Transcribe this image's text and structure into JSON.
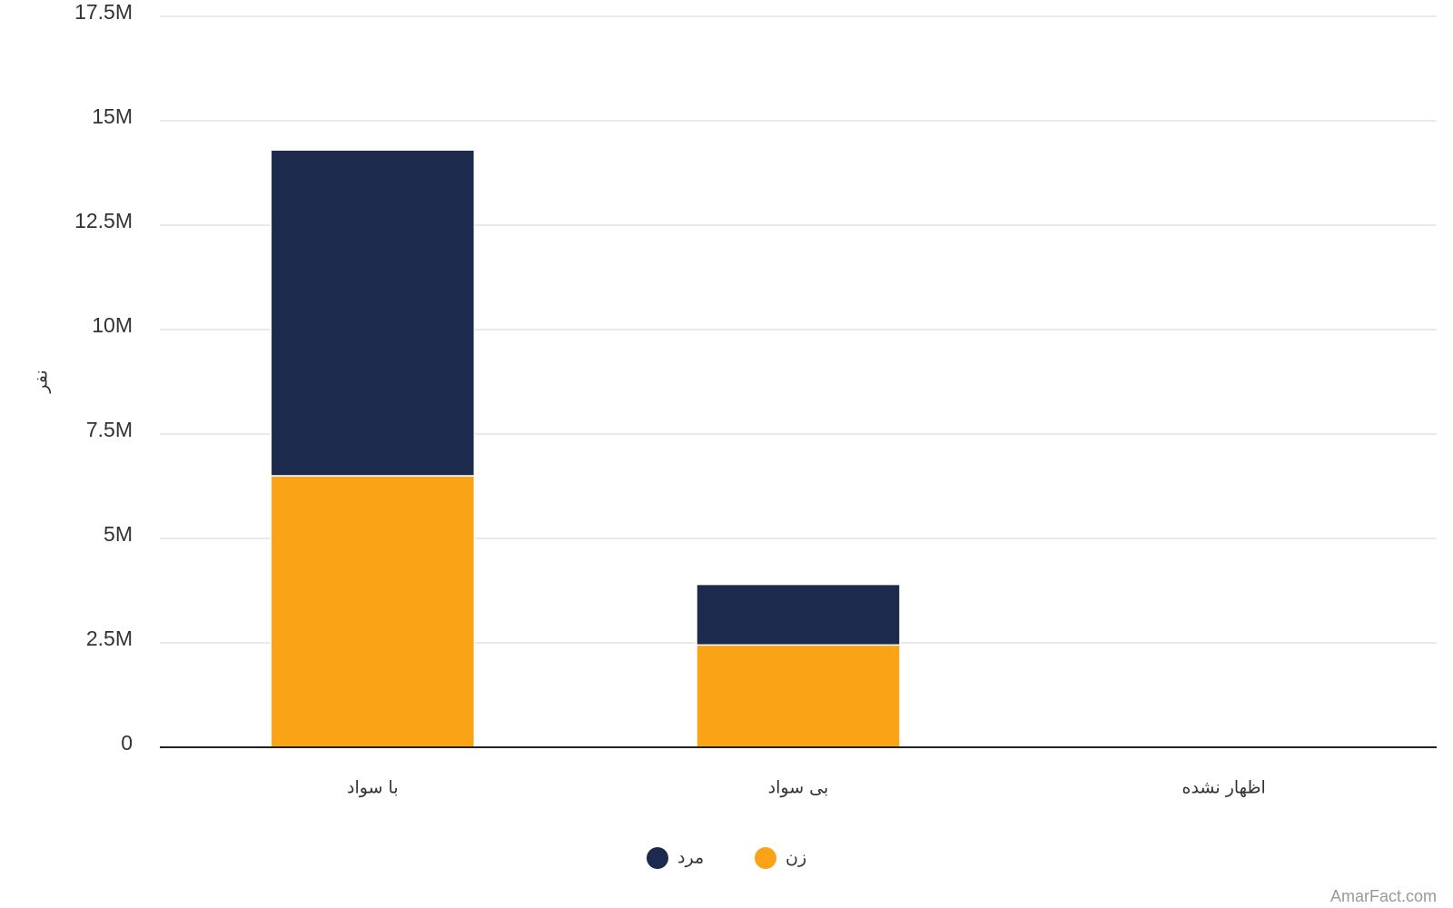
{
  "chart_data": {
    "type": "stacked-bar",
    "y_label": "نفر",
    "categories": [
      "با سواد",
      "بی سواد",
      "اظهار نشده"
    ],
    "series": [
      {
        "name": "زن",
        "color": "#faa317",
        "values": [
          6500000,
          2450000,
          0
        ]
      },
      {
        "name": "مرد",
        "color": "#1c2a4d",
        "values": [
          7800000,
          1450000,
          0
        ]
      }
    ],
    "ylim": [
      0,
      17500000
    ],
    "yticks": [
      0,
      {
        "value": 2500000,
        "label": "2.5M"
      },
      {
        "value": 5000000,
        "label": "5M"
      },
      {
        "value": 7500000,
        "label": "7.5M"
      },
      {
        "value": 10000000,
        "label": "10M"
      },
      {
        "value": 12500000,
        "label": "12.5M"
      },
      {
        "value": 15000000,
        "label": "15M"
      },
      {
        "value": 17500000,
        "label": "17.5M"
      }
    ],
    "grid": true,
    "legend": "bottom",
    "watermark": "AmarFact.com"
  }
}
